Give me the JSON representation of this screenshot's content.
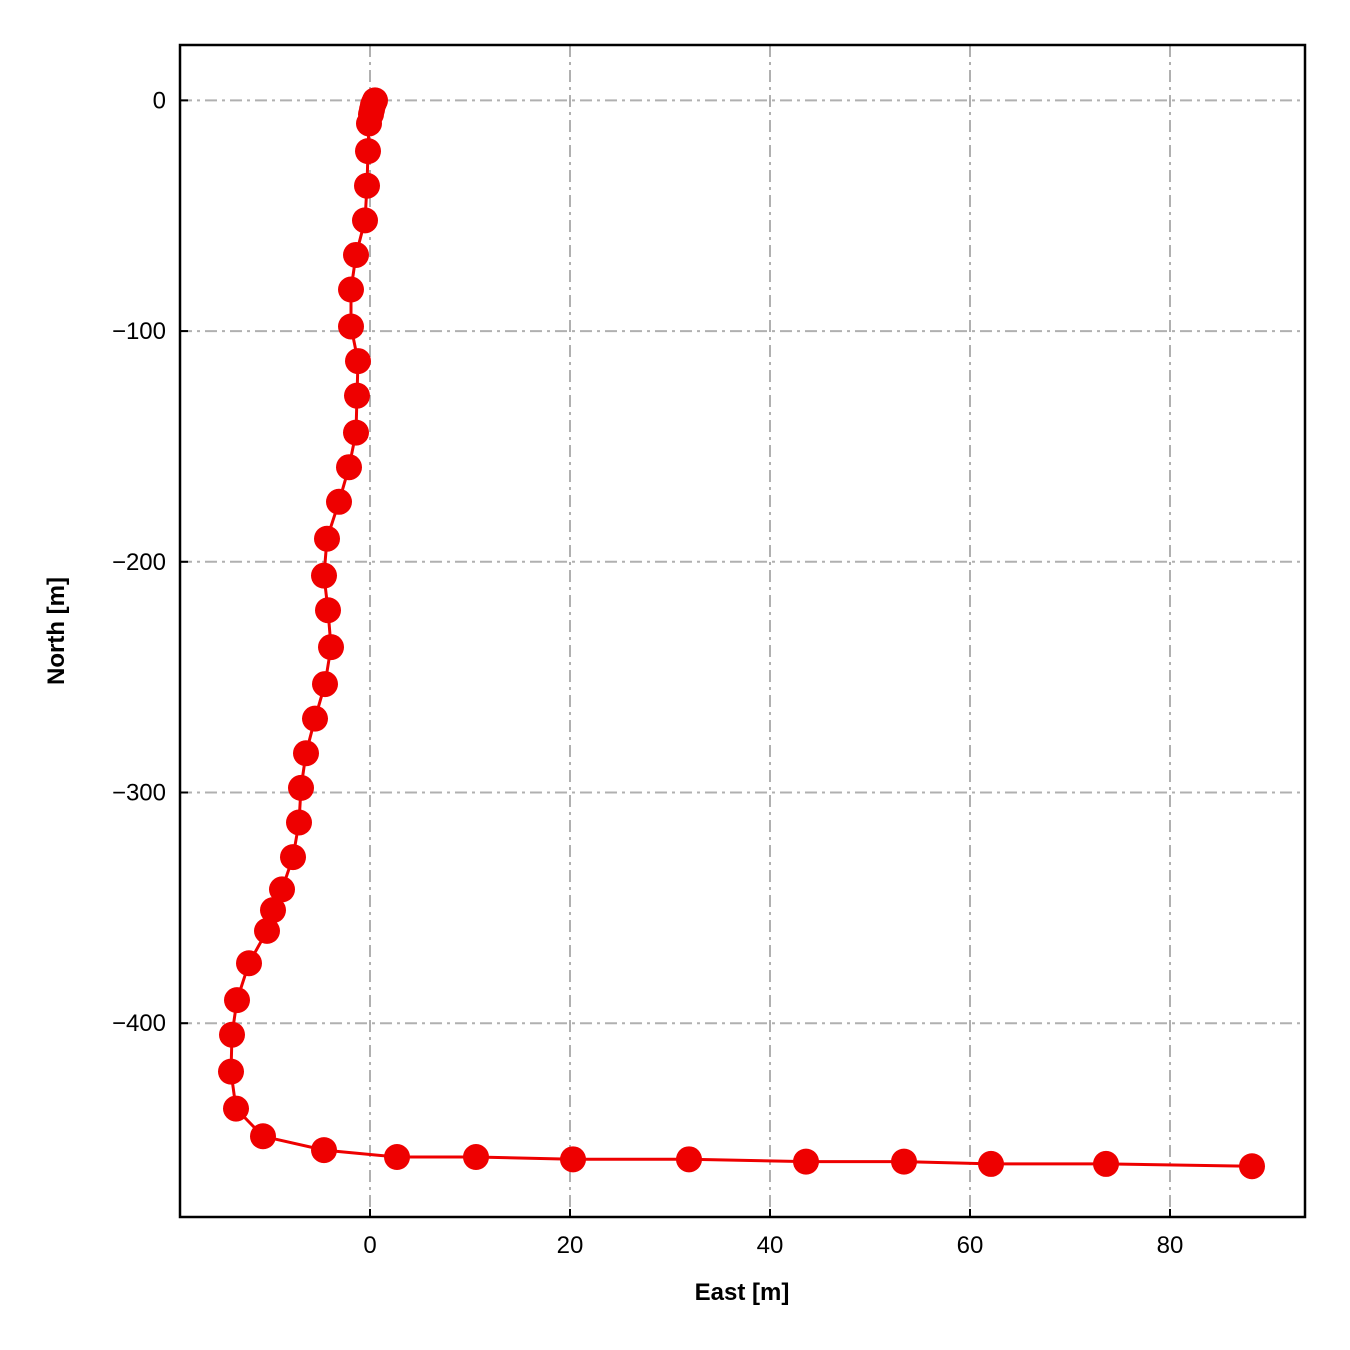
{
  "chart_data": {
    "type": "line",
    "title": "",
    "xlabel": "East [m]",
    "ylabel": "North [m]",
    "xlim": [
      -19,
      93.5
    ],
    "ylim": [
      -484,
      24
    ],
    "xticks": [
      0,
      20,
      40,
      60,
      80
    ],
    "yticks": [
      0,
      -100,
      -200,
      -300,
      -400
    ],
    "xtick_labels": [
      "0",
      "20",
      "40",
      "60",
      "80"
    ],
    "ytick_labels": [
      "0",
      "−100",
      "−200",
      "−300",
      "−400"
    ],
    "grid": true,
    "grid_style": "dash-dot",
    "legend": "none",
    "series": [
      {
        "color": "#ee0000",
        "marker": "circle",
        "x": [
          0.5,
          0.4,
          0.3,
          0.2,
          0.1,
          -0.1,
          -0.2,
          -0.3,
          -0.5,
          -1.4,
          -1.9,
          -1.9,
          -1.2,
          -1.3,
          -1.4,
          -2.1,
          -3.1,
          -4.3,
          -4.6,
          -4.2,
          -3.9,
          -4.5,
          -5.5,
          -6.4,
          -6.9,
          -7.1,
          -7.7,
          -8.8,
          -9.7,
          -10.3,
          -12.1,
          -13.3,
          -13.8,
          -13.9,
          -13.4,
          -10.7,
          -4.6,
          2.7,
          10.6,
          20.3,
          31.9,
          43.6,
          53.4,
          62.1,
          73.6,
          88.2
        ],
        "y": [
          0,
          -1,
          -2,
          -4,
          -6,
          -10,
          -22,
          -37,
          -52,
          -67,
          -82,
          -98,
          -113,
          -128,
          -144,
          -159,
          -174,
          -190,
          -206,
          -221,
          -237,
          -253,
          -268,
          -283,
          -298,
          -313,
          -328,
          -342,
          -351,
          -360,
          -374,
          -390,
          -405,
          -421,
          -437,
          -449,
          -455,
          -458,
          -458,
          -459,
          -459,
          -460,
          -460,
          -461,
          -461,
          -462
        ]
      }
    ]
  }
}
